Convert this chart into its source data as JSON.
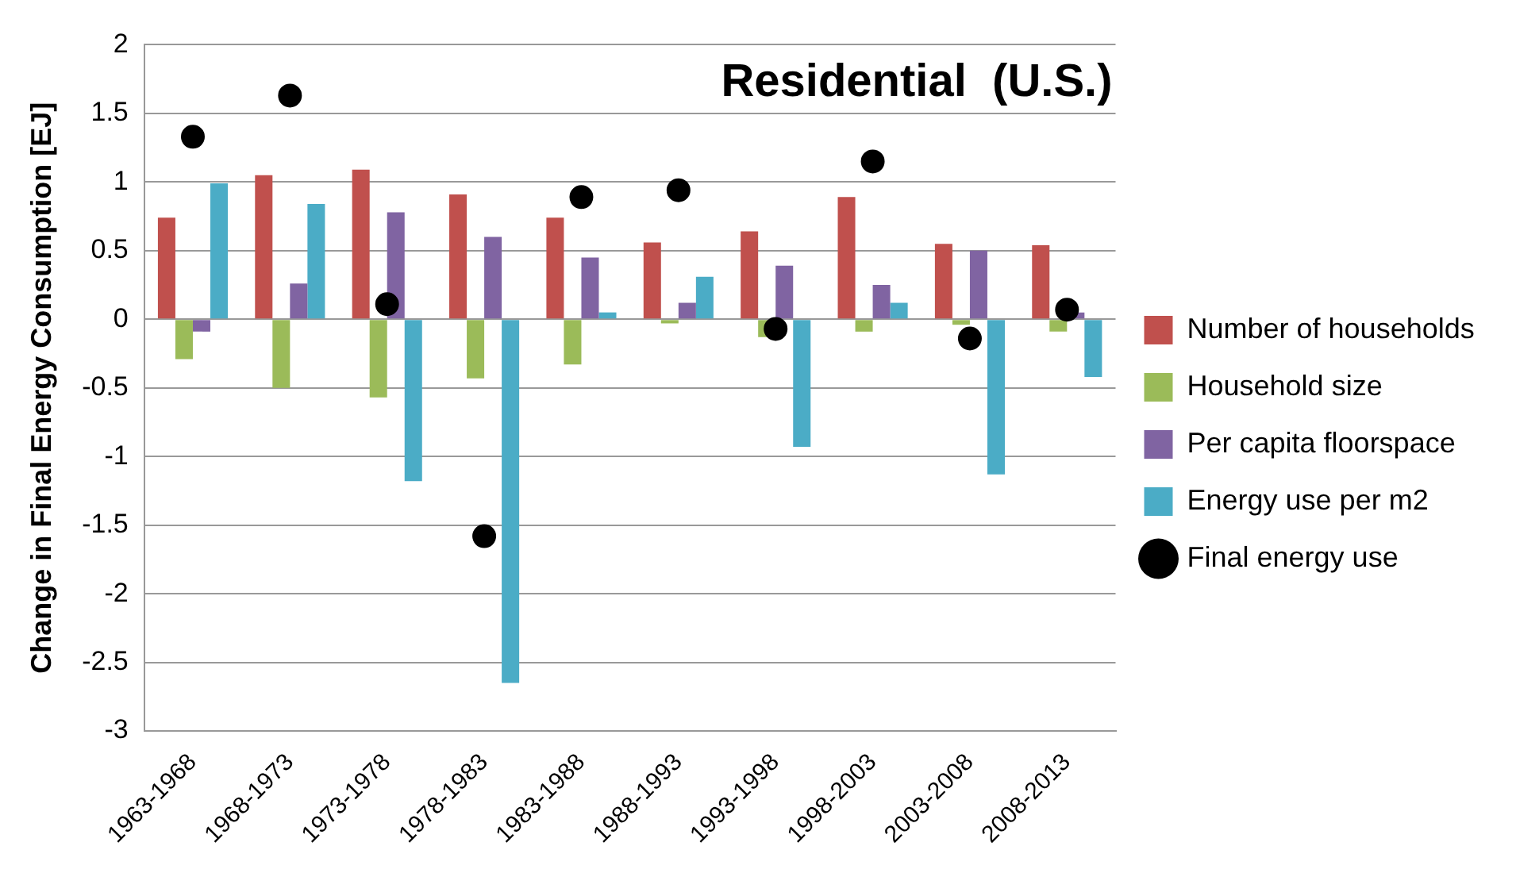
{
  "chart_data": {
    "type": "bar",
    "title": "Residential  (U.S.)",
    "ylabel": "Change in Final Energy Consumption [EJ]",
    "categories": [
      "1963-1968",
      "1968-1973",
      "1973-1978",
      "1978-1983",
      "1983-1988",
      "1988-1993",
      "1993-1998",
      "1998-2003",
      "2003-2008",
      "2008-2013"
    ],
    "series": [
      {
        "name": "Number of households",
        "color": "#c0504d",
        "values": [
          0.74,
          1.05,
          1.09,
          0.91,
          0.74,
          0.56,
          0.64,
          0.89,
          0.55,
          0.54
        ]
      },
      {
        "name": "Household size",
        "color": "#9bbb59",
        "values": [
          -0.29,
          -0.5,
          -0.57,
          -0.43,
          -0.33,
          -0.03,
          -0.13,
          -0.09,
          -0.04,
          -0.09
        ]
      },
      {
        "name": "Per capita floorspace",
        "color": "#8064a2",
        "values": [
          -0.09,
          0.26,
          0.78,
          0.6,
          0.45,
          0.12,
          0.39,
          0.25,
          0.5,
          0.05
        ]
      },
      {
        "name": "Energy use per m2",
        "color": "#4bacc6",
        "values": [
          0.99,
          0.84,
          -1.18,
          -2.65,
          0.05,
          0.31,
          -0.93,
          0.12,
          -1.13,
          -0.42
        ]
      },
      {
        "name": "Final energy use",
        "type": "scatter",
        "marker": "circle",
        "color": "#000000",
        "x": [
          "1963-1968",
          "1968-1973",
          "1973-1978",
          "1978-1983",
          "1983-1988",
          "1988-1993",
          "1993-1998",
          "1998-2003",
          "2003-2008",
          "2008-2013"
        ],
        "values": [
          1.33,
          1.63,
          0.11,
          -1.58,
          0.89,
          0.94,
          -0.07,
          1.15,
          -0.14,
          0.07
        ]
      }
    ],
    "ylim": [
      -3,
      2
    ],
    "yticks": [
      -3,
      -2.5,
      -2,
      -1.5,
      -1,
      -0.5,
      0,
      0.5,
      1,
      1.5,
      2
    ],
    "grid": "y",
    "legend": "right"
  }
}
